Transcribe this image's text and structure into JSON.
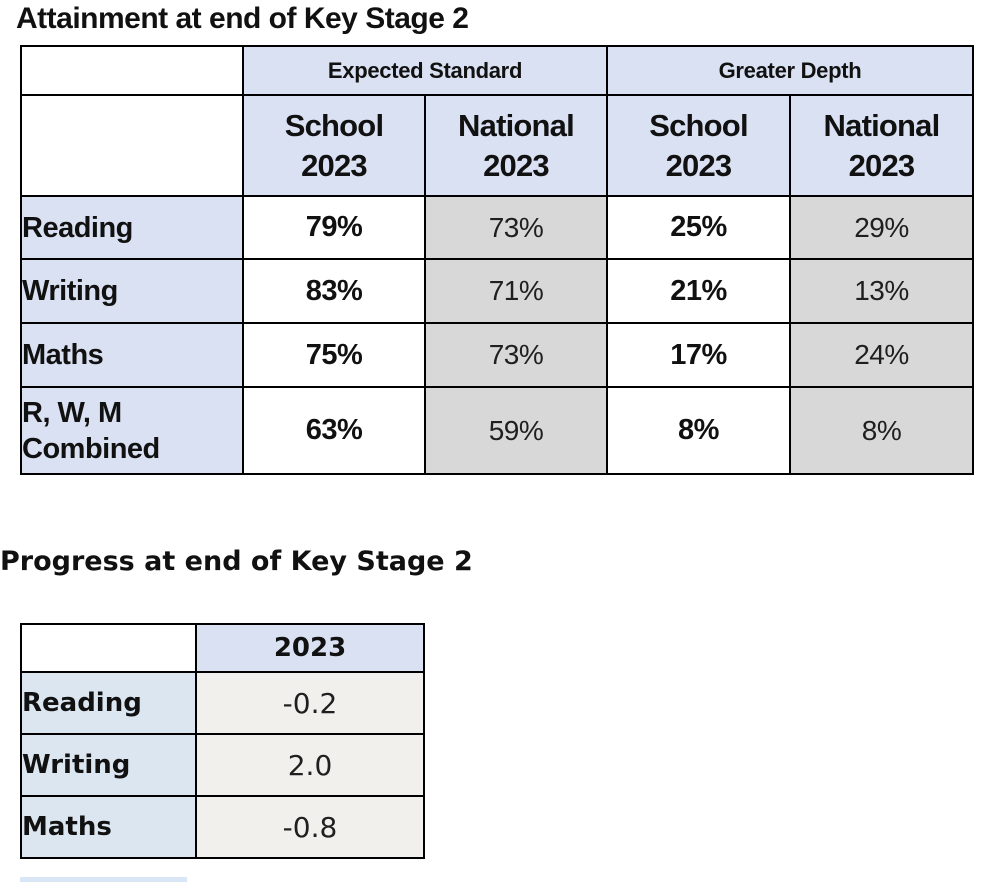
{
  "page": {
    "background": "#ffffff"
  },
  "colors": {
    "header_blue": "#D9E1F2",
    "national_gray": "#D8D8D8",
    "progress_value_gray": "#F1F0ED",
    "border": "#000000"
  },
  "attainment": {
    "title": "Attainment at end of Key Stage 2",
    "group_headers": [
      "Expected Standard",
      "Greater Depth"
    ],
    "col_headers": [
      "School\n2023",
      "National\n2023",
      "School\n2023",
      "National\n2023"
    ],
    "rows": [
      {
        "label": "Reading",
        "values": [
          "79%",
          "73%",
          "25%",
          "29%"
        ]
      },
      {
        "label": "Writing",
        "values": [
          "83%",
          "71%",
          "21%",
          "13%"
        ]
      },
      {
        "label": "Maths",
        "values": [
          "75%",
          "73%",
          "17%",
          "24%"
        ]
      },
      {
        "label": "R, W, M\nCombined",
        "values": [
          "63%",
          "59%",
          "8%",
          "8%"
        ]
      }
    ]
  },
  "progress": {
    "title": "Progress at end of Key Stage 2",
    "col_header": "2023",
    "rows": [
      {
        "label": "Reading",
        "value": "-0.2"
      },
      {
        "label": "Writing",
        "value": "2.0"
      },
      {
        "label": "Maths",
        "value": "-0.8"
      }
    ]
  }
}
